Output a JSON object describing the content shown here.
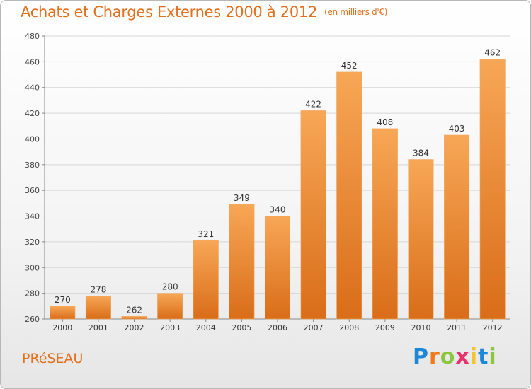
{
  "title": "Achats et Charges Externes 2000 à 2012",
  "unit_note": "(en milliers d'€)",
  "commune": "PRéSEAU",
  "logo": {
    "letters": [
      "P",
      "r",
      "o",
      "x",
      "i",
      "t",
      "i"
    ],
    "colors": [
      "#1e88d8",
      "#f07a1a",
      "#8cc63f",
      "#e8306a",
      "#f4c430",
      "#1e88d8",
      "#8cc63f"
    ]
  },
  "colors": {
    "accent": "#e4701e",
    "bar_top": "#f7a756",
    "bar_bottom": "#d96d19"
  },
  "chart_data": {
    "type": "bar",
    "categories": [
      "2000",
      "2001",
      "2002",
      "2003",
      "2004",
      "2005",
      "2006",
      "2007",
      "2008",
      "2009",
      "2010",
      "2011",
      "2012"
    ],
    "values": [
      270,
      278,
      262,
      280,
      321,
      349,
      340,
      422,
      452,
      408,
      384,
      403,
      462
    ],
    "data_labels": [
      "270",
      "278",
      "262",
      "280",
      "321",
      "349",
      "340",
      "422",
      "452",
      "408",
      "384",
      "403",
      "462"
    ],
    "title": "Achats et Charges Externes 2000 à 2012",
    "ylim": [
      260,
      480
    ],
    "yticks": [
      260,
      280,
      300,
      320,
      340,
      360,
      380,
      400,
      420,
      440,
      460,
      480
    ],
    "grid": true,
    "legend": "none"
  }
}
